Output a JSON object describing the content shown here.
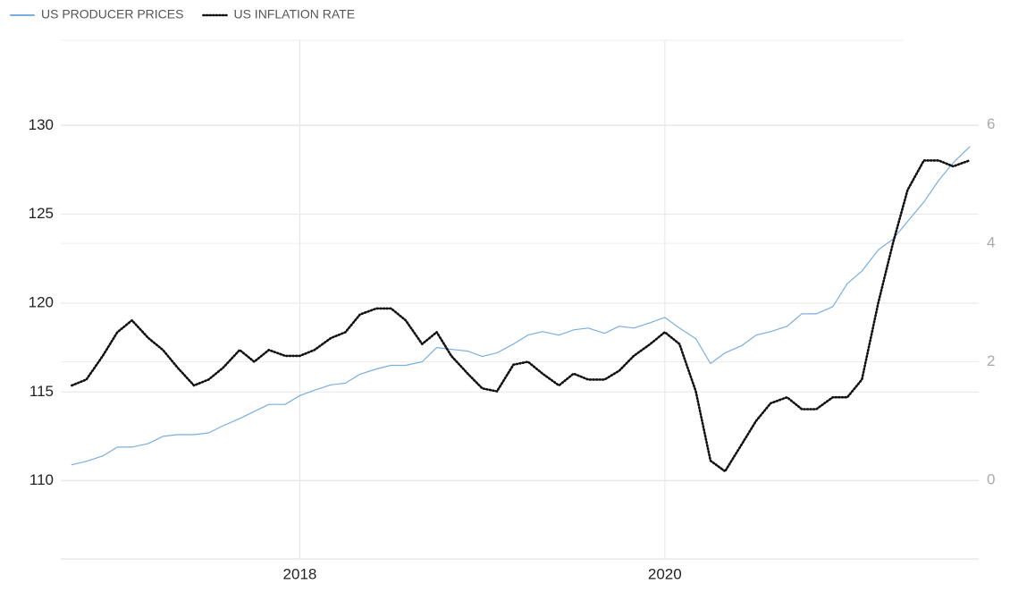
{
  "chart_data": {
    "type": "line",
    "x": [
      2016.75,
      2016.83,
      2016.92,
      2017.0,
      2017.08,
      2017.17,
      2017.25,
      2017.33,
      2017.42,
      2017.5,
      2017.58,
      2017.67,
      2017.75,
      2017.83,
      2017.92,
      2018.0,
      2018.08,
      2018.17,
      2018.25,
      2018.33,
      2018.42,
      2018.5,
      2018.58,
      2018.67,
      2018.75,
      2018.83,
      2018.92,
      2019.0,
      2019.08,
      2019.17,
      2019.25,
      2019.33,
      2019.42,
      2019.5,
      2019.58,
      2019.67,
      2019.75,
      2019.83,
      2019.92,
      2020.0,
      2020.08,
      2020.17,
      2020.25,
      2020.33,
      2020.42,
      2020.5,
      2020.58,
      2020.67,
      2020.75,
      2020.83,
      2020.92,
      2021.0,
      2021.08,
      2021.17,
      2021.25,
      2021.33,
      2021.42,
      2021.5,
      2021.58,
      2021.67
    ],
    "series": [
      {
        "name": "US PRODUCER PRICES",
        "color": "#7aaee0",
        "axis": "y",
        "values": [
          110.9,
          111.1,
          111.4,
          111.9,
          111.9,
          112.1,
          112.5,
          112.6,
          112.6,
          112.7,
          113.1,
          113.5,
          113.9,
          114.3,
          114.3,
          114.8,
          115.1,
          115.4,
          115.5,
          116.0,
          116.3,
          116.5,
          116.5,
          116.7,
          117.5,
          117.4,
          117.3,
          117.0,
          117.2,
          117.7,
          118.2,
          118.4,
          118.2,
          118.5,
          118.6,
          118.3,
          118.7,
          118.6,
          118.9,
          119.2,
          118.6,
          118.0,
          116.6,
          117.2,
          117.6,
          118.2,
          118.4,
          118.7,
          119.4,
          119.4,
          119.8,
          121.1,
          121.8,
          123.0,
          123.6,
          124.6,
          125.7,
          126.9,
          127.9,
          128.8
        ]
      },
      {
        "name": "US INFLATION RATE",
        "color": "#111111",
        "axis": "y2",
        "values": [
          1.6,
          1.7,
          2.1,
          2.5,
          2.7,
          2.4,
          2.2,
          1.9,
          1.6,
          1.7,
          1.9,
          2.2,
          2.0,
          2.2,
          2.1,
          2.1,
          2.2,
          2.4,
          2.5,
          2.8,
          2.9,
          2.9,
          2.7,
          2.3,
          2.5,
          2.1,
          1.8,
          1.55,
          1.5,
          1.95,
          2.0,
          1.8,
          1.6,
          1.8,
          1.7,
          1.7,
          1.85,
          2.1,
          2.3,
          2.5,
          2.3,
          1.5,
          0.33,
          0.15,
          0.6,
          1.0,
          1.3,
          1.4,
          1.2,
          1.2,
          1.4,
          1.4,
          1.7,
          3.0,
          4.0,
          4.9,
          5.4,
          5.4,
          5.3,
          5.4
        ]
      }
    ],
    "xlim": [
      2016.69,
      2021.72
    ],
    "xticks": [
      2018,
      2020
    ],
    "ylim": [
      105.6,
      134.8
    ],
    "yticks": [
      110,
      115,
      120,
      125,
      130
    ],
    "y2lim": [
      -1.33,
      7.43
    ],
    "y2ticks": [
      0,
      2,
      4,
      6
    ],
    "grid": true
  }
}
